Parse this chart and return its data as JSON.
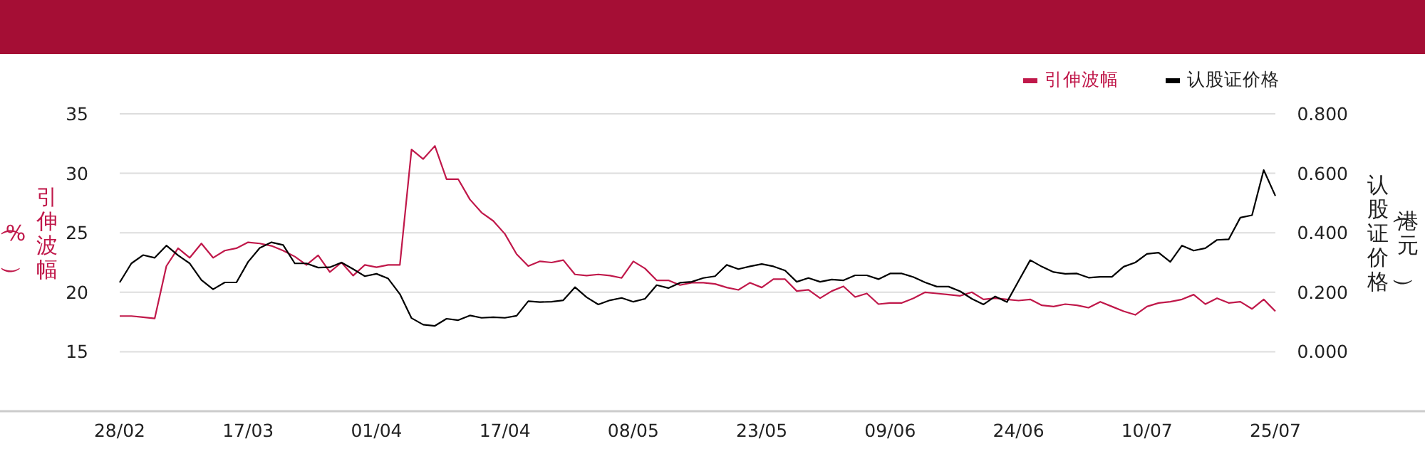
{
  "chart_data": {
    "type": "line",
    "ylabel": "引伸波幅（%）",
    "y2label": "认股证价格（港元）",
    "categories": [
      "28/02",
      null,
      null,
      null,
      null,
      null,
      null,
      null,
      null,
      null,
      null,
      "17/03",
      null,
      null,
      null,
      null,
      null,
      null,
      null,
      null,
      null,
      null,
      "01/04",
      null,
      null,
      null,
      null,
      null,
      null,
      null,
      null,
      null,
      null,
      "17/04",
      null,
      null,
      null,
      null,
      null,
      null,
      null,
      null,
      null,
      null,
      "08/05",
      null,
      null,
      null,
      null,
      null,
      null,
      null,
      null,
      null,
      null,
      "23/05",
      null,
      null,
      null,
      null,
      null,
      null,
      null,
      null,
      null,
      null,
      "09/06",
      null,
      null,
      null,
      null,
      null,
      null,
      null,
      null,
      null,
      null,
      "24/06",
      null,
      null,
      null,
      null,
      null,
      null,
      null,
      null,
      null,
      null,
      "10/07",
      null,
      null,
      null,
      null,
      null,
      null,
      null,
      null,
      null,
      null,
      "25/07"
    ],
    "series": [
      {
        "name": "引伸波幅",
        "color": "#c0184a",
        "values": [
          18.0,
          18.0,
          17.9,
          17.8,
          22.2,
          23.7,
          22.9,
          24.1,
          22.9,
          23.5,
          23.7,
          24.2,
          24.1,
          23.9,
          23.5,
          23.0,
          22.3,
          23.1,
          21.7,
          22.5,
          21.4,
          22.3,
          22.1,
          22.3,
          22.3,
          32.0,
          31.2,
          32.3,
          29.5,
          29.5,
          27.8,
          26.7,
          26.0,
          24.9,
          23.2,
          22.2,
          22.6,
          22.5,
          22.7,
          21.5,
          21.4,
          21.5,
          21.4,
          21.2,
          22.6,
          22.0,
          21.0,
          21.0,
          20.6,
          20.8,
          20.8,
          20.7,
          20.4,
          20.2,
          20.8,
          20.4,
          21.1,
          21.1,
          20.1,
          20.2,
          19.5,
          20.1,
          20.5,
          19.6,
          19.9,
          19.0,
          19.1,
          19.1,
          19.5,
          20.0,
          19.9,
          19.8,
          19.7,
          20.0,
          19.4,
          19.5,
          19.4,
          19.3,
          19.4,
          18.9,
          18.8,
          19.0,
          18.9,
          18.7,
          19.2,
          18.8,
          18.4,
          18.1,
          18.8,
          19.1,
          19.2,
          19.4,
          19.8,
          19.0,
          19.5,
          19.1,
          19.2,
          18.6,
          19.4,
          18.4
        ]
      },
      {
        "name": "认股证价格",
        "color": "#000000",
        "axis": "y2",
        "values": [
          0.233,
          0.297,
          0.325,
          0.316,
          0.357,
          0.324,
          0.297,
          0.241,
          0.21,
          0.233,
          0.233,
          0.302,
          0.349,
          0.368,
          0.359,
          0.297,
          0.297,
          0.283,
          0.284,
          0.3,
          0.278,
          0.254,
          0.262,
          0.246,
          0.194,
          0.113,
          0.091,
          0.087,
          0.111,
          0.106,
          0.122,
          0.114,
          0.116,
          0.114,
          0.121,
          0.17,
          0.167,
          0.168,
          0.173,
          0.217,
          0.183,
          0.159,
          0.173,
          0.181,
          0.168,
          0.178,
          0.224,
          0.214,
          0.232,
          0.235,
          0.248,
          0.254,
          0.292,
          0.278,
          0.287,
          0.295,
          0.287,
          0.273,
          0.235,
          0.248,
          0.235,
          0.243,
          0.24,
          0.257,
          0.257,
          0.244,
          0.263,
          0.263,
          0.251,
          0.233,
          0.219,
          0.219,
          0.203,
          0.178,
          0.159,
          0.186,
          0.167,
          0.238,
          0.308,
          0.286,
          0.268,
          0.262,
          0.263,
          0.249,
          0.252,
          0.252,
          0.286,
          0.3,
          0.329,
          0.333,
          0.302,
          0.357,
          0.34,
          0.348,
          0.376,
          0.378,
          0.451,
          0.459,
          0.611,
          0.524
        ]
      }
    ],
    "ylim": [
      10,
      35
    ],
    "yticks": [
      15,
      20,
      25,
      30,
      35
    ],
    "y2lim": [
      -0.2,
      0.8
    ],
    "y2ticks": [
      {
        "value": 0,
        "label": "0.000"
      },
      {
        "value": 0.2,
        "label": "0.200"
      },
      {
        "value": 0.4,
        "label": "0.400"
      },
      {
        "value": 0.6,
        "label": "0.600"
      },
      {
        "value": 0.8,
        "label": "0.800"
      }
    ],
    "grid": "y",
    "legend": "top right"
  }
}
